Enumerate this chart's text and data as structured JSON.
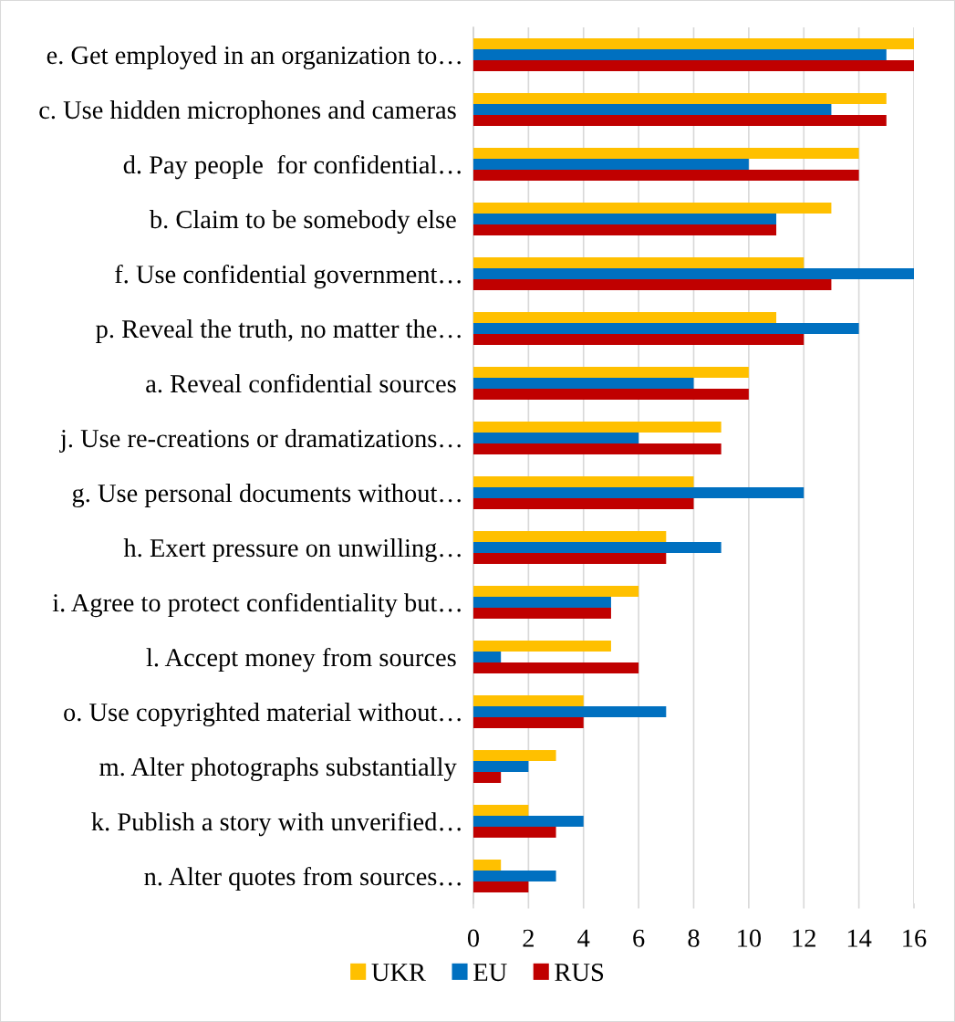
{
  "chart_data": {
    "type": "bar",
    "orientation": "horizontal",
    "categories": [
      "e. Get employed in an organization to…",
      "c. Use hidden microphones and cameras ",
      "d. Pay people  for confidential…",
      "b. Claim to be somebody else ",
      "f. Use confidential government…",
      "p. Reveal the truth, no matter the…",
      "a. Reveal confidential sources ",
      "j. Use re-creations or dramatizations…",
      "g. Use personal documents without…",
      "h. Exert pressure on unwilling…",
      "i. Agree to protect confidentiality but…",
      "l. Accept money from sources ",
      "o. Use copyrighted material without…",
      "m. Alter photographs substantially ",
      "k. Publish a story with unverified…",
      "n. Alter quotes from sources…"
    ],
    "series": [
      {
        "name": "UKR",
        "color": "#ffc000",
        "values": [
          16,
          15,
          14,
          13,
          12,
          11,
          10,
          9,
          8,
          7,
          6,
          5,
          4,
          3,
          2,
          1
        ]
      },
      {
        "name": "EU",
        "color": "#0070c0",
        "values": [
          15,
          13,
          10,
          11,
          16,
          14,
          8,
          6,
          12,
          9,
          5,
          1,
          7,
          2,
          4,
          3
        ]
      },
      {
        "name": "RUS",
        "color": "#c00000",
        "values": [
          16,
          15,
          14,
          11,
          13,
          12,
          10,
          9,
          8,
          7,
          5,
          6,
          4,
          1,
          3,
          2
        ]
      }
    ],
    "xlim": [
      0,
      16
    ],
    "xticks": [
      0,
      2,
      4,
      6,
      8,
      10,
      12,
      14,
      16
    ],
    "grid": "x",
    "legend": "bottom"
  }
}
